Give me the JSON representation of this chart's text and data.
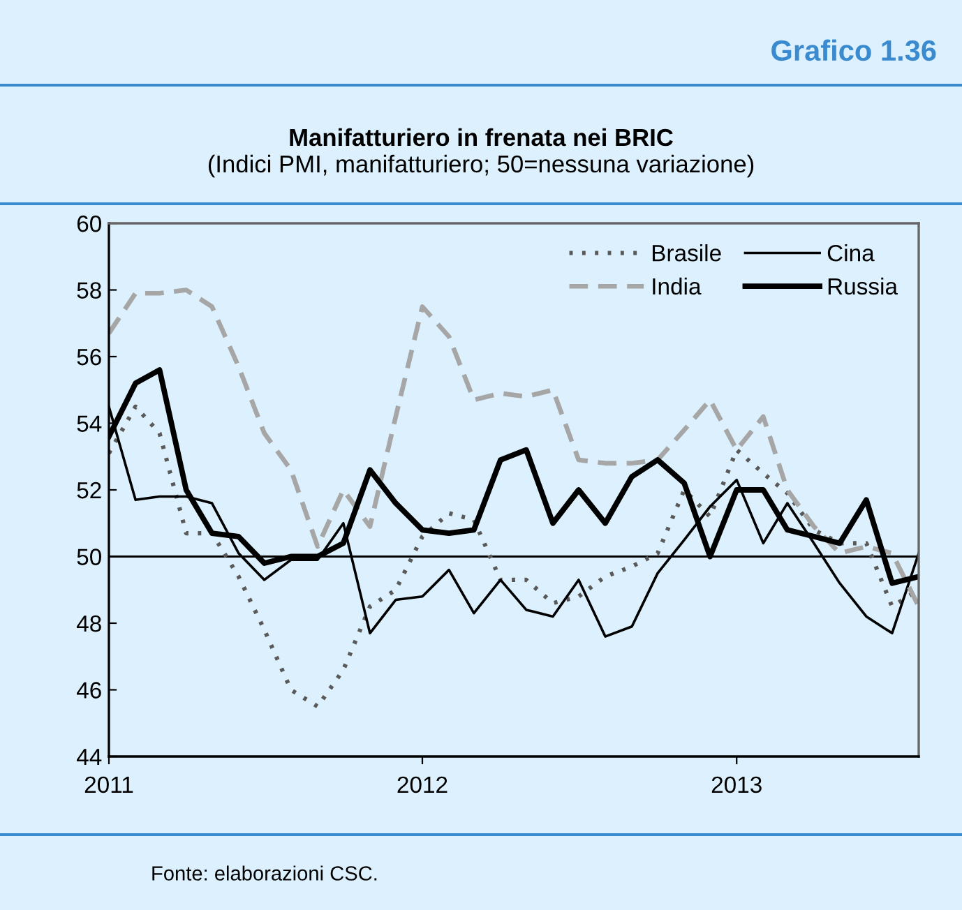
{
  "chart_data": {
    "type": "line",
    "title": "Manifatturiero in frenata nei BRIC",
    "subtitle": "(Indici PMI, manifatturiero; 50=nessuna variazione)",
    "annotations": [
      "Grafico 1.36",
      "Fonte: elaborazioni CSC."
    ],
    "x": [
      "2011-01",
      "2011-02",
      "2011-03",
      "2011-04",
      "2011-05",
      "2011-06",
      "2011-07",
      "2011-08",
      "2011-09",
      "2011-10",
      "2011-11",
      "2011-12",
      "2012-01",
      "2012-02",
      "2012-03",
      "2012-04",
      "2012-05",
      "2012-06",
      "2012-07",
      "2012-08",
      "2012-09",
      "2012-10",
      "2012-11",
      "2012-12",
      "2013-01",
      "2013-02",
      "2013-03",
      "2013-04",
      "2013-05",
      "2013-06",
      "2013-07",
      "2013-08"
    ],
    "series": [
      {
        "name": "Brasile",
        "color": "#595959",
        "line_style": "dotted",
        "values": [
          53.1,
          54.5,
          53.7,
          50.7,
          50.7,
          49.4,
          47.8,
          46.0,
          45.5,
          46.6,
          48.5,
          49.0,
          50.6,
          51.3,
          51.1,
          49.3,
          49.3,
          48.6,
          48.8,
          49.4,
          49.7,
          50.1,
          52.0,
          51.2,
          53.2,
          52.5,
          51.9,
          50.8,
          50.4,
          50.4,
          48.5,
          49.0
        ]
      },
      {
        "name": "Cina",
        "color": "#000000",
        "line_style": "solid",
        "values": [
          54.5,
          51.7,
          51.8,
          51.8,
          51.6,
          50.1,
          49.3,
          49.9,
          49.9,
          51.0,
          47.7,
          48.7,
          48.8,
          49.6,
          48.3,
          49.3,
          48.4,
          48.2,
          49.3,
          47.6,
          47.9,
          49.5,
          50.5,
          51.5,
          52.3,
          50.4,
          51.6,
          50.4,
          49.2,
          48.2,
          47.7,
          50.1
        ]
      },
      {
        "name": "India",
        "color": "#a6a6a6",
        "line_style": "dashed",
        "values": [
          56.7,
          57.9,
          57.9,
          58.0,
          57.5,
          55.7,
          53.7,
          52.6,
          50.3,
          52.0,
          50.9,
          54.2,
          57.5,
          56.6,
          54.7,
          54.9,
          54.8,
          55.0,
          52.9,
          52.8,
          52.8,
          52.9,
          53.8,
          54.7,
          53.2,
          54.2,
          52.0,
          50.9,
          50.1,
          50.3,
          50.1,
          48.5
        ]
      },
      {
        "name": "Russia",
        "color": "#000000",
        "line_style": "solid",
        "values": [
          53.6,
          55.2,
          55.6,
          52.0,
          50.7,
          50.6,
          49.8,
          50.0,
          50.0,
          50.4,
          52.6,
          51.6,
          50.8,
          50.7,
          50.8,
          52.9,
          53.2,
          51.0,
          52.0,
          51.0,
          52.4,
          52.9,
          52.2,
          50.0,
          52.0,
          52.0,
          50.8,
          50.6,
          50.4,
          51.7,
          49.2,
          49.4
        ]
      }
    ],
    "xlim": [
      "2011-01",
      "2013-08"
    ],
    "xticks": [
      "2011",
      "2012",
      "2013"
    ],
    "ylim": [
      44,
      60
    ],
    "yticks": [
      44,
      46,
      48,
      50,
      52,
      54,
      56,
      58,
      60
    ],
    "ref_lines": [
      {
        "axis": "y",
        "value": 50,
        "color": "#000000"
      }
    ],
    "grid": false,
    "legend": "top right",
    "marker": "none"
  }
}
